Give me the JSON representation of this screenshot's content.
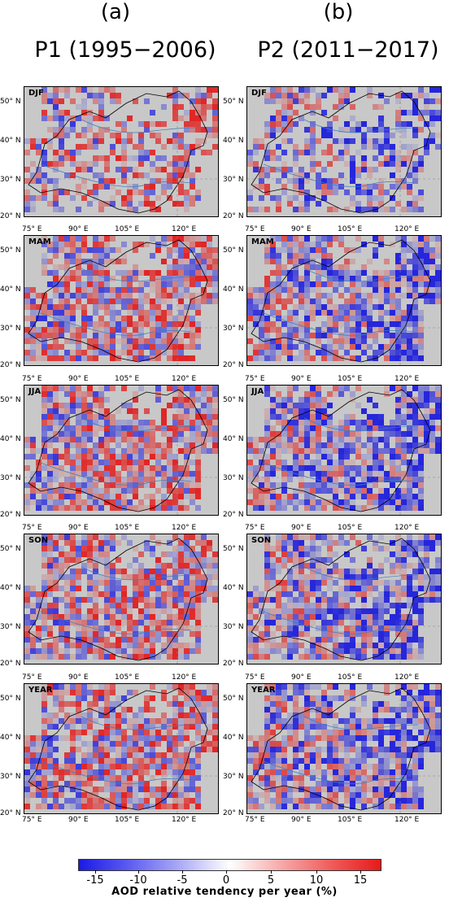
{
  "columns": [
    {
      "letter": "(a)",
      "title": "P1 (1995−2006)"
    },
    {
      "letter": "(b)",
      "title": "P2 (2011−2017)"
    }
  ],
  "seasons": [
    "DJF",
    "MAM",
    "JJA",
    "SON",
    "YEAR"
  ],
  "lat_labels": [
    "50° N",
    "40° N",
    "30° N",
    "20° N"
  ],
  "lon_labels": [
    "75° E",
    "90° E",
    "105° E",
    "120° E"
  ],
  "colorbar": {
    "ticks": [
      "-15",
      "-10",
      "-5",
      "0",
      "5",
      "10",
      "15"
    ],
    "label": "AOD relative tendency per year (%)",
    "min_color": "#1a1ae6",
    "mid_color": "#ffffff",
    "max_color": "#e61a1a"
  },
  "colors": {
    "background": "#c8c8c8",
    "coast": "#000000",
    "rivers": "#3a7fc0",
    "grid": "#888888"
  }
}
